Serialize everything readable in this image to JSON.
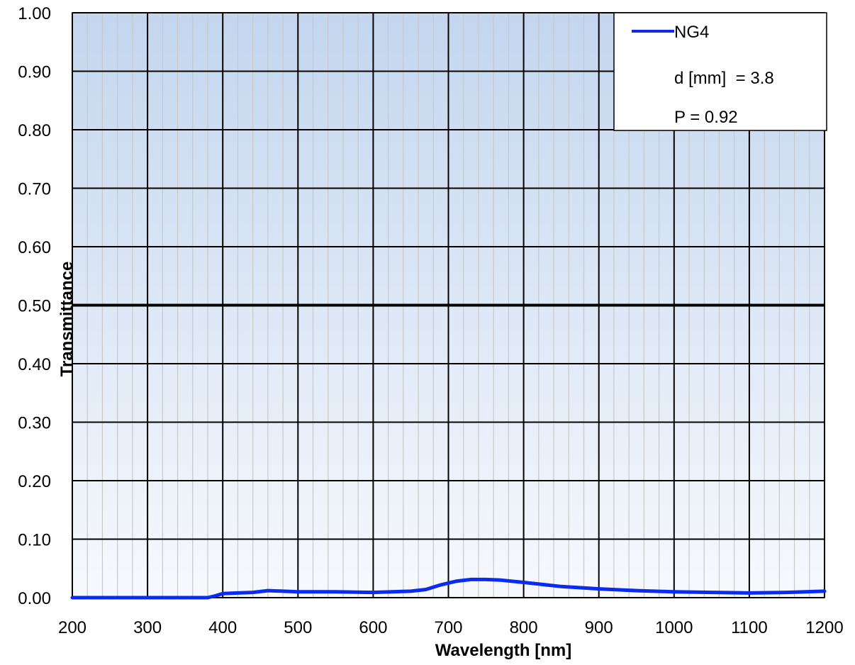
{
  "chart_data": {
    "type": "line",
    "xlabel": "Wavelength [nm]",
    "ylabel": "Transmittance",
    "xlim": [
      200,
      1200
    ],
    "ylim": [
      0,
      1
    ],
    "x_ticks": [
      "200",
      "300",
      "400",
      "500",
      "600",
      "700",
      "800",
      "900",
      "1000",
      "1100",
      "1200"
    ],
    "y_ticks": [
      "0.00",
      "0.10",
      "0.20",
      "0.30",
      "0.40",
      "0.50",
      "0.60",
      "0.70",
      "0.80",
      "0.90",
      "1.00"
    ],
    "grid": true,
    "reference_line_y": 0.5,
    "legend": {
      "placement": "top-right",
      "entries": [
        "NG4",
        "d [mm]  = 3.8",
        "P = 0.92"
      ]
    },
    "series": [
      {
        "name": "NG4",
        "color": "#0a2bf0",
        "x": [
          200,
          250,
          300,
          350,
          380,
          390,
          400,
          420,
          440,
          460,
          480,
          500,
          550,
          600,
          650,
          670,
          690,
          710,
          730,
          750,
          770,
          800,
          850,
          900,
          950,
          1000,
          1050,
          1100,
          1150,
          1200
        ],
        "y": [
          0.0,
          0.0,
          0.0,
          0.0,
          0.0,
          0.003,
          0.007,
          0.008,
          0.009,
          0.012,
          0.011,
          0.01,
          0.01,
          0.009,
          0.011,
          0.014,
          0.022,
          0.028,
          0.031,
          0.031,
          0.03,
          0.026,
          0.019,
          0.015,
          0.012,
          0.01,
          0.009,
          0.008,
          0.009,
          0.011
        ]
      }
    ],
    "colors": {
      "plot_bg_top": "#c3d6ee",
      "plot_bg_bottom": "#f7f9fd",
      "grid_major": "#000000",
      "grid_minor": "#c8c8c8"
    }
  }
}
